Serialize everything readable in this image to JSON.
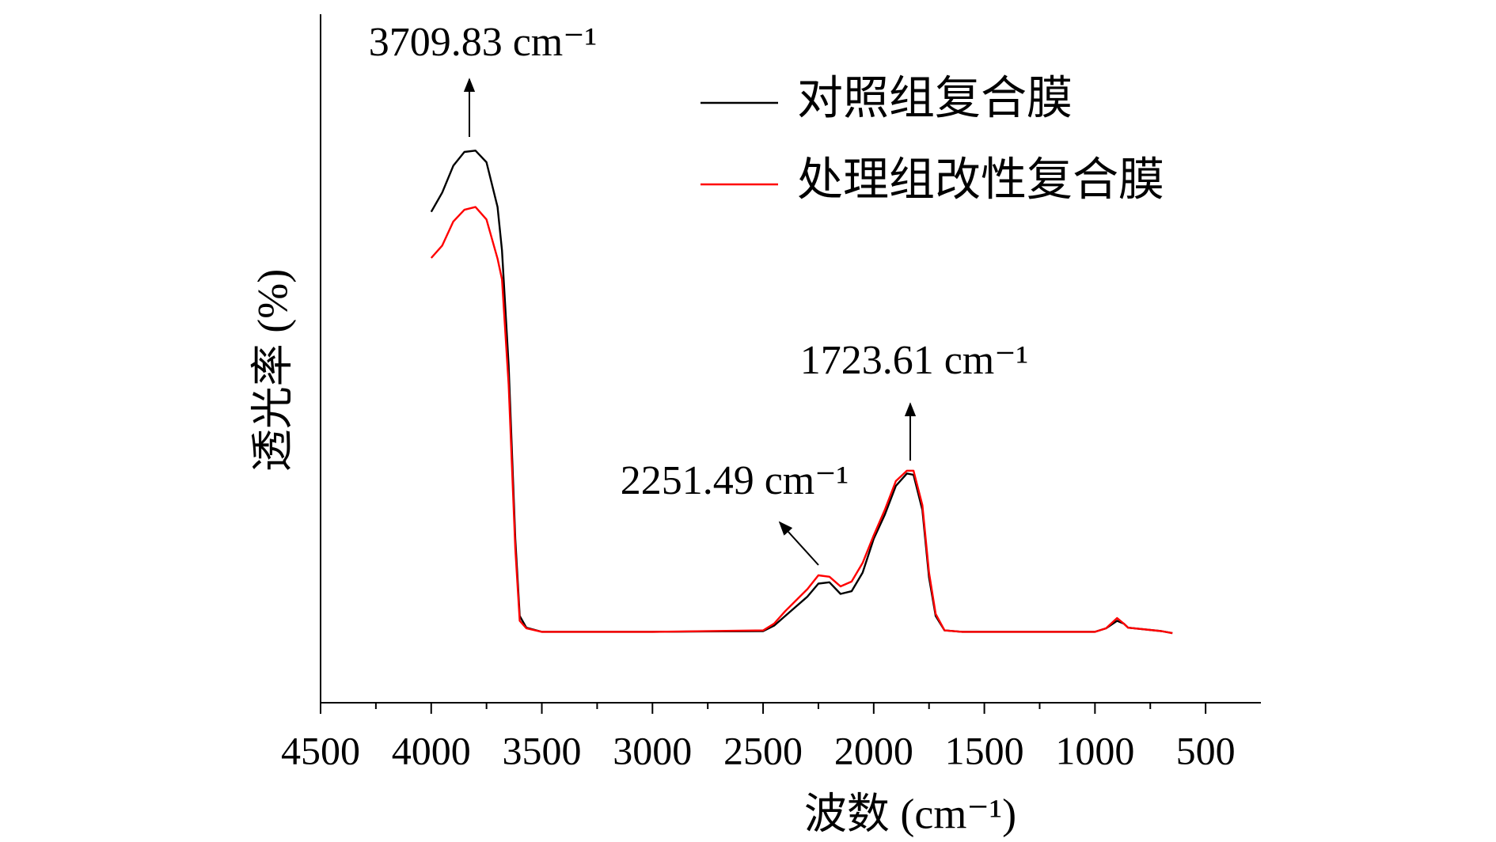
{
  "chart_data": {
    "type": "line",
    "x_label": "波数 (cm⁻¹)",
    "y_label": "透光率 (%)",
    "x": [
      4000,
      3950,
      3900,
      3850,
      3800,
      3750,
      3700,
      3680,
      3650,
      3620,
      3600,
      3570,
      3500,
      3000,
      2500,
      2450,
      2400,
      2300,
      2250,
      2200,
      2150,
      2100,
      2050,
      2000,
      1950,
      1900,
      1850,
      1820,
      1780,
      1750,
      1720,
      1680,
      1600,
      1000,
      950,
      900,
      870,
      850,
      700,
      650
    ],
    "series": [
      {
        "name": "对照组复合膜",
        "color": "#000000",
        "values": [
          71.3,
          74.1,
          78.0,
          80.0,
          80.2,
          78.5,
          72.0,
          65.7,
          49.0,
          23.8,
          12.6,
          10.9,
          10.3,
          10.3,
          10.4,
          11.2,
          12.6,
          15.4,
          17.3,
          17.5,
          15.8,
          16.2,
          18.9,
          23.8,
          27.3,
          31.5,
          33.3,
          33.1,
          28.0,
          18.2,
          12.6,
          10.5,
          10.3,
          10.3,
          10.8,
          11.9,
          11.5,
          10.9,
          10.4,
          10.1
        ]
      },
      {
        "name": "处理组改性复合膜",
        "color": "#ff0000",
        "values": [
          64.6,
          66.4,
          69.9,
          71.6,
          72.0,
          70.2,
          64.5,
          61.5,
          46.2,
          22.4,
          11.9,
          10.8,
          10.3,
          10.3,
          10.5,
          11.5,
          13.3,
          16.5,
          18.5,
          18.3,
          16.9,
          17.6,
          20.3,
          24.3,
          28.0,
          32.2,
          33.7,
          33.7,
          28.7,
          18.9,
          12.9,
          10.5,
          10.3,
          10.3,
          10.8,
          12.3,
          11.5,
          10.9,
          10.4,
          10.1
        ]
      }
    ],
    "xlim": [
      4500,
      250
    ],
    "xticks": [
      4500,
      4000,
      3500,
      3000,
      2500,
      2000,
      1500,
      1000,
      500
    ],
    "ylim": [
      0,
      100
    ],
    "annotations": [
      {
        "text": "3709.83 cm⁻¹"
      },
      {
        "text": "2251.49 cm⁻¹"
      },
      {
        "text": "1723.61 cm⁻¹"
      }
    ],
    "legend": "upper right"
  }
}
